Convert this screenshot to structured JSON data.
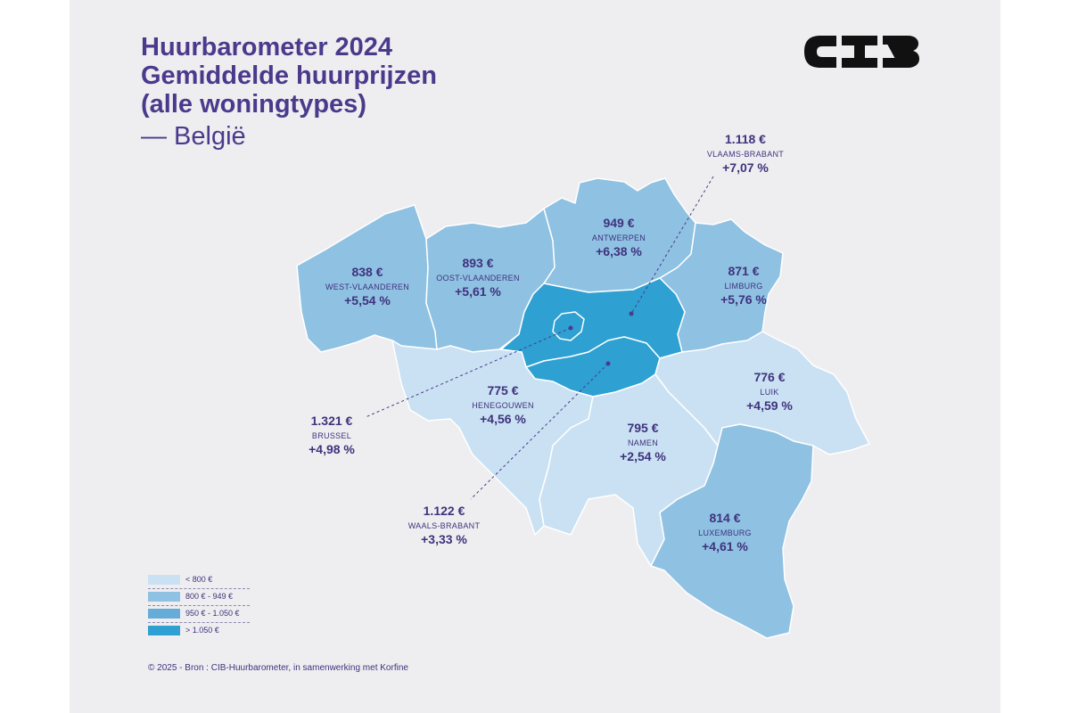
{
  "title": {
    "line1": "Huurbarometer 2024",
    "line2": "Gemiddelde huurprijzen",
    "line3": "(alle woningtypes)",
    "subtitle": "— België"
  },
  "logo_text": "CIB",
  "colors": {
    "lt800": "#c9e1f2",
    "r800_949": "#8fc1e2",
    "r950_1050": "#65acd8",
    "gt1050": "#2ea0d1",
    "text": "#3f327d",
    "title": "#4b3a8c"
  },
  "provinces": [
    {
      "id": "west-vlaanderen",
      "name": "WEST-VLAANDEREN",
      "price": "838 €",
      "change": "+5,54 %",
      "bracket": "800 € - 949 €"
    },
    {
      "id": "oost-vlaanderen",
      "name": "OOST-VLAANDEREN",
      "price": "893 €",
      "change": "+5,61 %",
      "bracket": "800 € - 949 €"
    },
    {
      "id": "antwerpen",
      "name": "ANTWERPEN",
      "price": "949 €",
      "change": "+6,38 %",
      "bracket": "800 € - 949 €"
    },
    {
      "id": "limburg",
      "name": "LIMBURG",
      "price": "871 €",
      "change": "+5,76 %",
      "bracket": "800 € - 949 €"
    },
    {
      "id": "vlaams-brabant",
      "name": "VLAAMS-BRABANT",
      "price": "1.118 €",
      "change": "+7,07 %",
      "bracket": "> 1.050 €"
    },
    {
      "id": "brussel",
      "name": "BRUSSEL",
      "price": "1.321 €",
      "change": "+4,98 %",
      "bracket": "> 1.050 €"
    },
    {
      "id": "waals-brabant",
      "name": "WAALS-BRABANT",
      "price": "1.122 €",
      "change": "+3,33 %",
      "bracket": "> 1.050 €"
    },
    {
      "id": "henegouwen",
      "name": "HENEGOUWEN",
      "price": "775 €",
      "change": "+4,56 %",
      "bracket": "< 800 €"
    },
    {
      "id": "namen",
      "name": "NAMEN",
      "price": "795 €",
      "change": "+2,54 %",
      "bracket": "< 800 €"
    },
    {
      "id": "luik",
      "name": "LUIK",
      "price": "776 €",
      "change": "+4,59 %",
      "bracket": "< 800 €"
    },
    {
      "id": "luxemburg",
      "name": "LUXEMBURG",
      "price": "814 €",
      "change": "+4,61 %",
      "bracket": "800 € - 949 €"
    }
  ],
  "legend": [
    {
      "label": "< 800 €",
      "color": "#c9e1f2"
    },
    {
      "label": "800 € - 949 €",
      "color": "#8fc1e2"
    },
    {
      "label": "950 € - 1.050 €",
      "color": "#65acd8"
    },
    {
      "label": "> 1.050 €",
      "color": "#2ea0d1"
    }
  ],
  "source": "© 2025 - Bron : CIB-Huurbarometer, in samenwerking met Korfine"
}
